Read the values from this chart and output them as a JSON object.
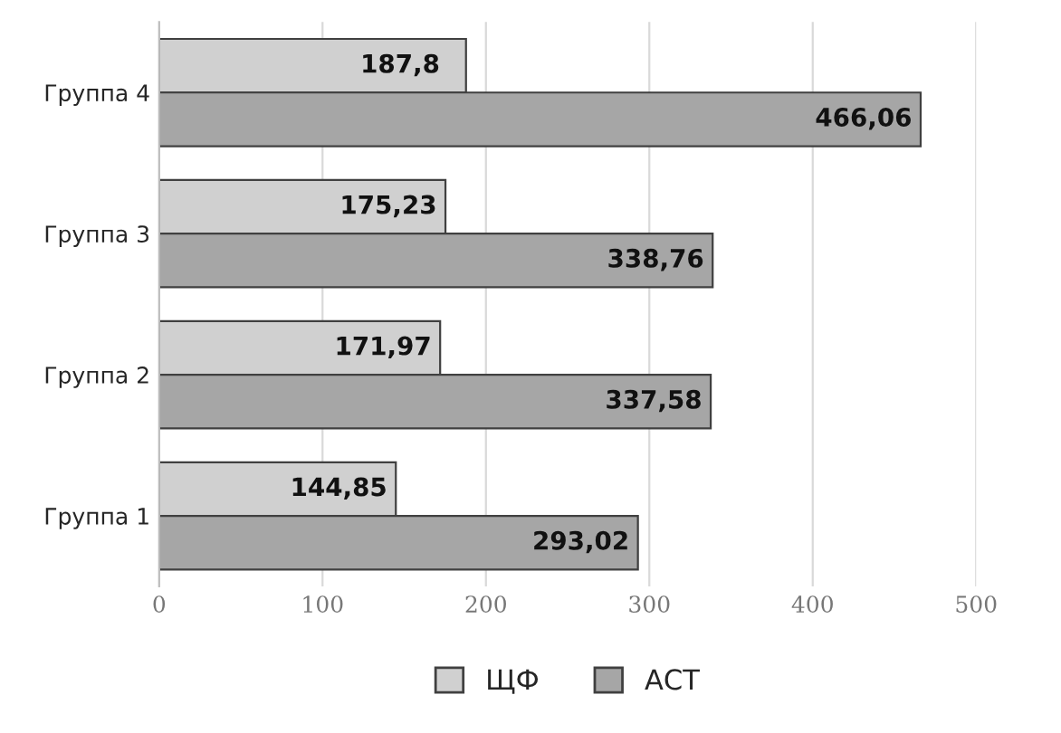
{
  "chart_data": {
    "type": "bar",
    "orientation": "horizontal",
    "categories": [
      "Группа 4",
      "Группа 3",
      "Группа 2",
      "Группа 1"
    ],
    "series": [
      {
        "name": "ЩФ",
        "color": "#d0d0d0",
        "values": [
          187.8,
          175.23,
          171.97,
          144.85
        ],
        "value_labels": [
          "187,8",
          "175,23",
          "171,97",
          "144,85"
        ]
      },
      {
        "name": "АСТ",
        "color": "#a6a6a6",
        "values": [
          466.06,
          338.76,
          337.58,
          293.02
        ],
        "value_labels": [
          "466,06",
          "338,76",
          "337,58",
          "293,02"
        ]
      }
    ],
    "xlim": [
      0,
      500
    ],
    "xticks": [
      0,
      100,
      200,
      300,
      400,
      500
    ],
    "grid": "x",
    "legend": "bottom"
  }
}
